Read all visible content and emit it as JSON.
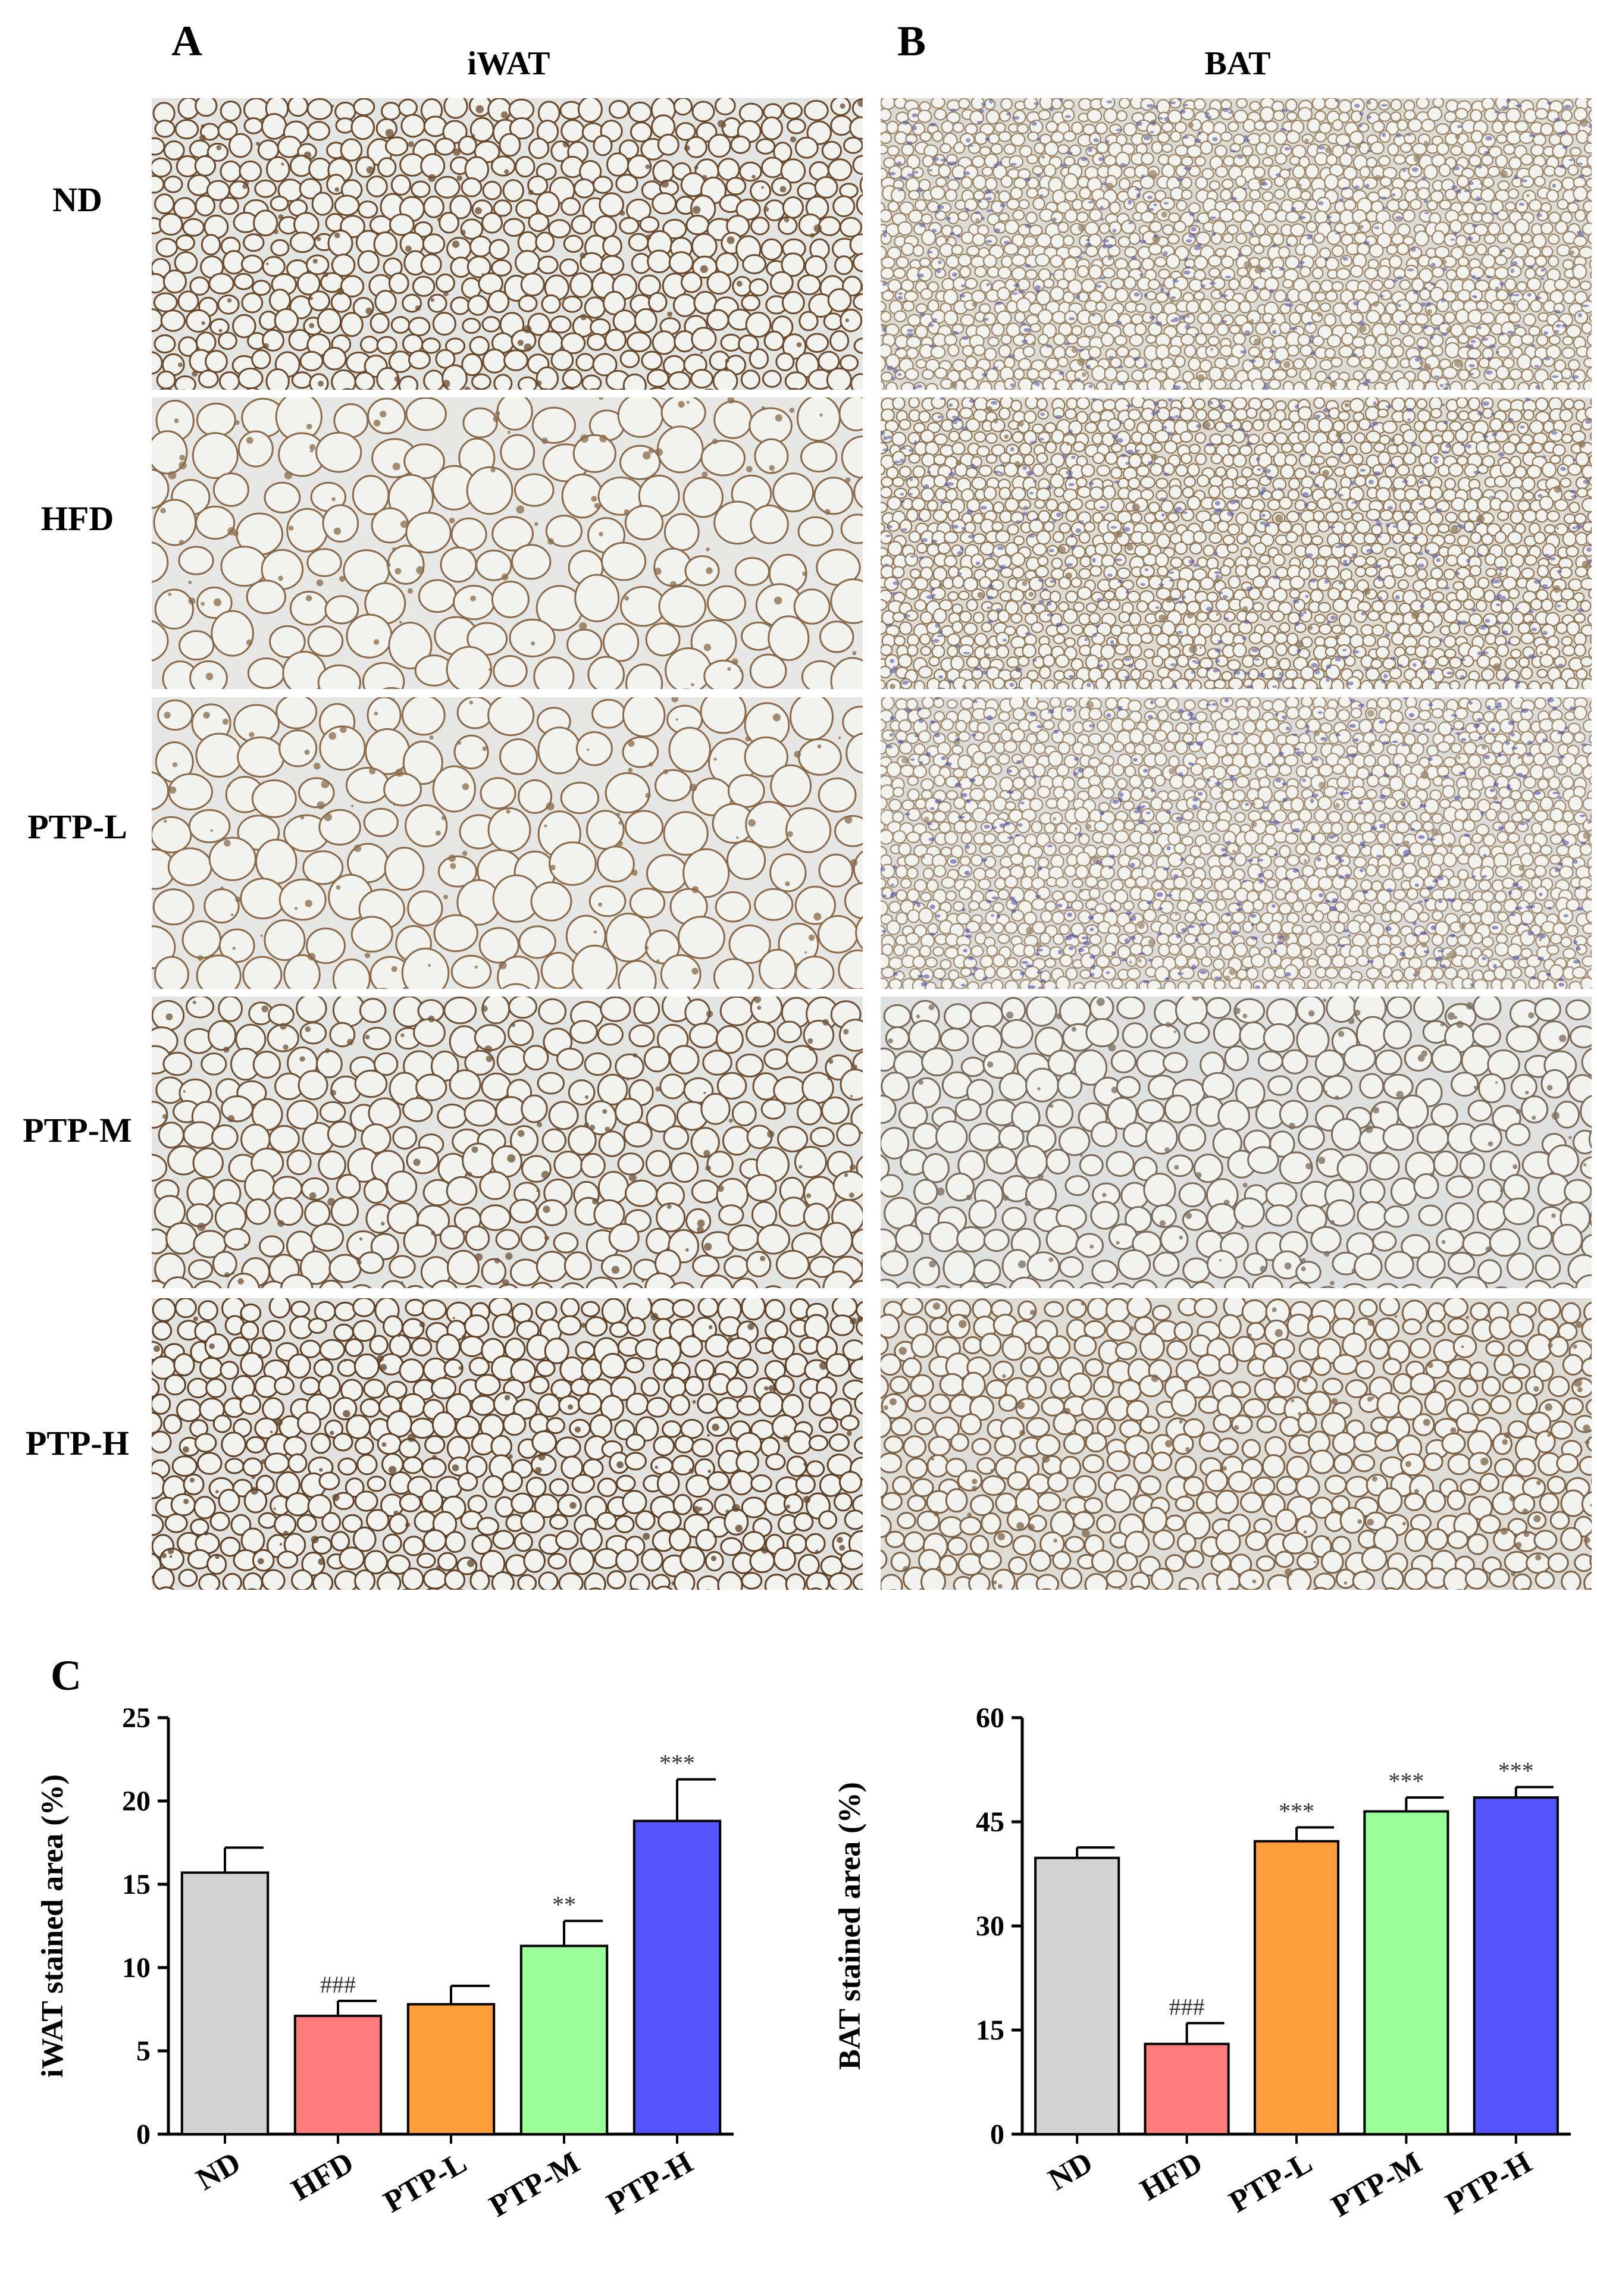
{
  "panels": {
    "A": {
      "letter": "A",
      "title": "iWAT"
    },
    "B": {
      "letter": "B",
      "title": "BAT"
    },
    "C": {
      "letter": "C"
    }
  },
  "row_labels": [
    "ND",
    "HFD",
    "PTP-L",
    "PTP-M",
    "PTP-H"
  ],
  "micrographs": {
    "iWAT": [
      {
        "group": "ND",
        "tissue": "iWAT",
        "stain_color": "#6b4a2e",
        "bg": "#e3e5e2",
        "cell_size": "small"
      },
      {
        "group": "HFD",
        "tissue": "iWAT",
        "stain_color": "#8a6a4a",
        "bg": "#e7e8e5",
        "cell_size": "large"
      },
      {
        "group": "PTP-L",
        "tissue": "iWAT",
        "stain_color": "#8a6a4a",
        "bg": "#e6e7e4",
        "cell_size": "large"
      },
      {
        "group": "PTP-M",
        "tissue": "iWAT",
        "stain_color": "#6f5238",
        "bg": "#e3e5e2",
        "cell_size": "medium"
      },
      {
        "group": "PTP-H",
        "tissue": "iWAT",
        "stain_color": "#5f4128",
        "bg": "#e1e2df",
        "cell_size": "small"
      }
    ],
    "BAT": [
      {
        "group": "ND",
        "tissue": "BAT",
        "stain_color": "#9b8468",
        "bg": "#dcdcd6",
        "cell_size": "tiny",
        "nuclei": "#5a5aa0"
      },
      {
        "group": "HFD",
        "tissue": "BAT",
        "stain_color": "#8f7658",
        "bg": "#dedcd5",
        "cell_size": "tiny",
        "nuclei": "#5a5aa0"
      },
      {
        "group": "PTP-L",
        "tissue": "BAT",
        "stain_color": "#a08a70",
        "bg": "#dcdcdc",
        "cell_size": "tiny",
        "nuclei": "#4e4ea6"
      },
      {
        "group": "PTP-M",
        "tissue": "BAT",
        "stain_color": "#7a6a5a",
        "bg": "#dfe1e0",
        "cell_size": "medium",
        "nuclei": ""
      },
      {
        "group": "PTP-H",
        "tissue": "BAT",
        "stain_color": "#7d6248",
        "bg": "#dddcd6",
        "cell_size": "small",
        "nuclei": ""
      }
    ]
  },
  "chart_data": [
    {
      "type": "bar",
      "title": "",
      "ylabel": "iWAT stained area (%)",
      "xlabel": "",
      "categories": [
        "ND",
        "HFD",
        "PTP-L",
        "PTP-M",
        "PTP-H"
      ],
      "values": [
        15.7,
        7.1,
        7.8,
        11.3,
        18.8
      ],
      "errors": [
        1.5,
        0.9,
        1.1,
        1.5,
        2.5
      ],
      "annotations": [
        "",
        "###",
        "",
        "**",
        "***"
      ],
      "colors": [
        "#d3d3d3",
        "#ff7c7c",
        "#ff9c3c",
        "#99ff99",
        "#5555ff"
      ],
      "ylim": [
        0,
        25
      ],
      "yticks": [
        0,
        5,
        10,
        15,
        20,
        25
      ],
      "grid": false
    },
    {
      "type": "bar",
      "title": "",
      "ylabel": "BAT stained area (%)",
      "xlabel": "",
      "categories": [
        "ND",
        "HFD",
        "PTP-L",
        "PTP-M",
        "PTP-H"
      ],
      "values": [
        39.8,
        13.0,
        42.2,
        46.5,
        48.5
      ],
      "errors": [
        1.5,
        3.0,
        2.0,
        2.0,
        1.5
      ],
      "annotations": [
        "",
        "###",
        "***",
        "***",
        "***"
      ],
      "colors": [
        "#d3d3d3",
        "#ff7c7c",
        "#ff9c3c",
        "#99ff99",
        "#5555ff"
      ],
      "ylim": [
        0,
        60
      ],
      "yticks": [
        0,
        15,
        30,
        45,
        60
      ],
      "grid": false
    }
  ]
}
